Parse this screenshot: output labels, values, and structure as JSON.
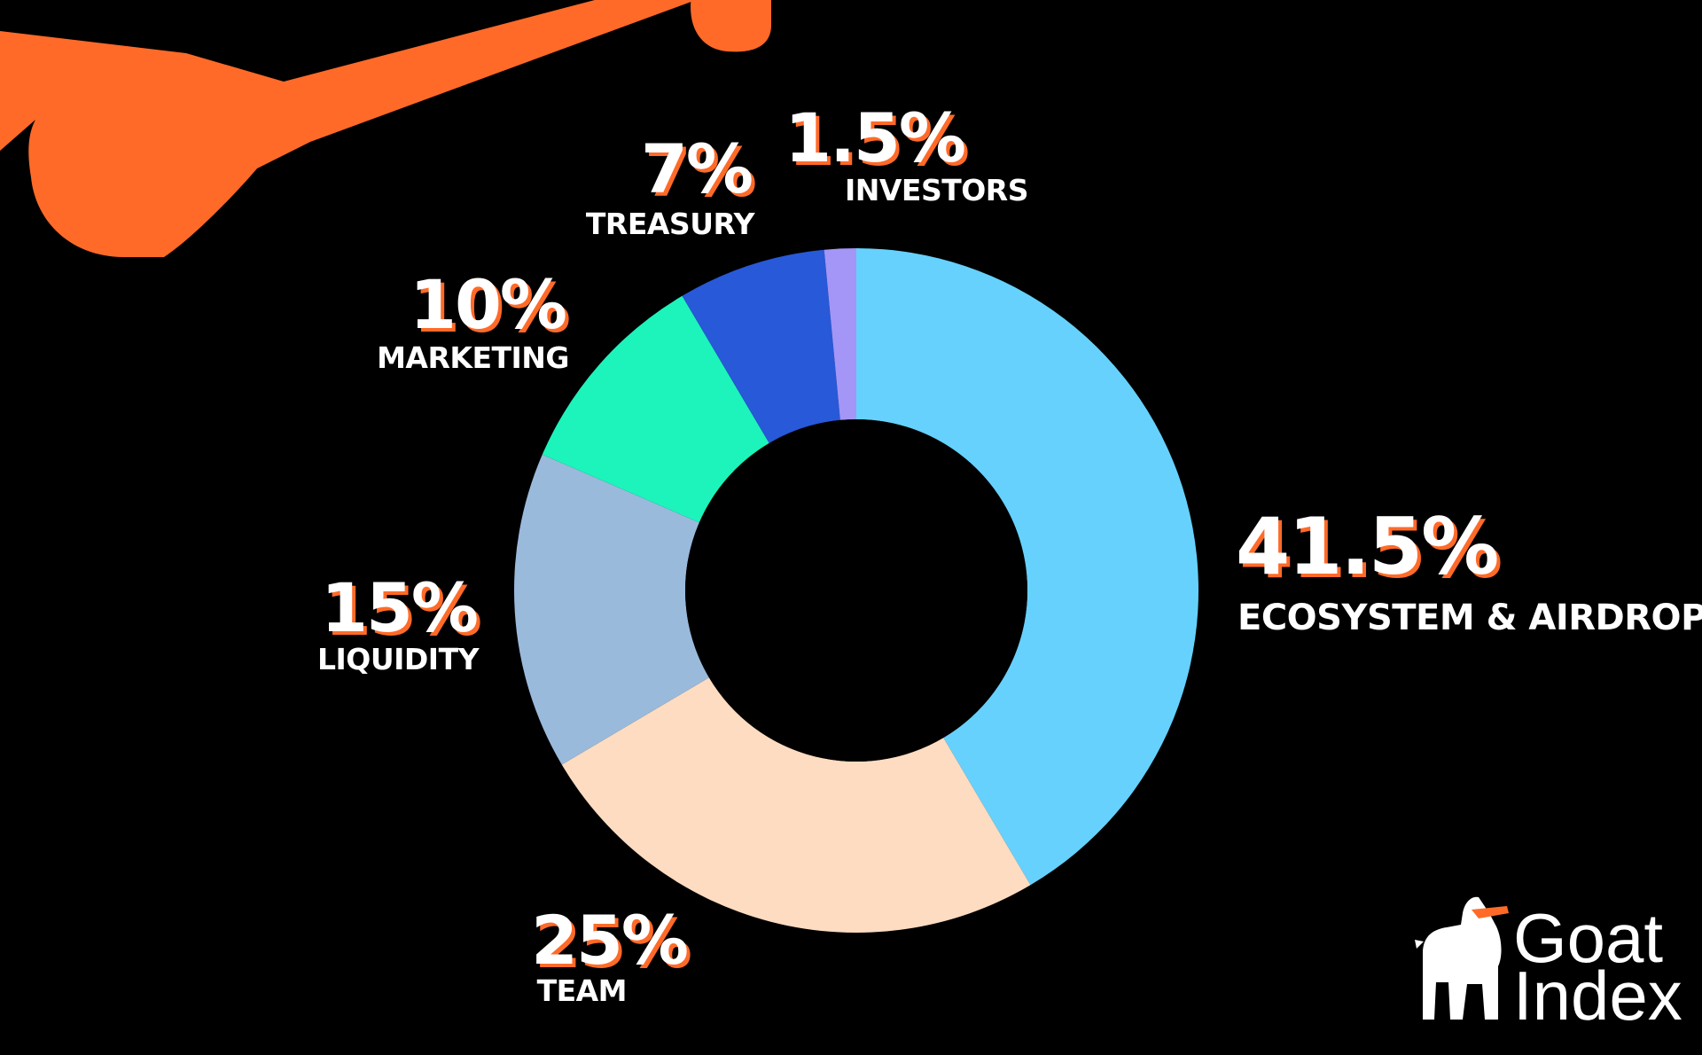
{
  "chart_data": {
    "type": "pie",
    "donut": true,
    "slices": [
      {
        "label": "ECOSYSTEM & AIRDROPS",
        "percent_label": "41.5%",
        "value": 41.5,
        "color": "#66d1fc"
      },
      {
        "label": "TEAM",
        "percent_label": "25%",
        "value": 25,
        "color": "#fddcc1"
      },
      {
        "label": "LIQUIDITY",
        "percent_label": "15%",
        "value": 15,
        "color": "#9abadc"
      },
      {
        "label": "MARKETING",
        "percent_label": "10%",
        "value": 10,
        "color": "#1cf4bb"
      },
      {
        "label": "TREASURY",
        "percent_label": "7%",
        "value": 7,
        "color": "#2759d9"
      },
      {
        "label": "INVESTORS",
        "percent_label": "1.5%",
        "value": 1.5,
        "color": "#a396f7"
      }
    ],
    "start_angle": "12 o'clock",
    "direction": "clockwise"
  },
  "brand": {
    "line1": "Goat",
    "line2": "Index"
  },
  "colors": {
    "background": "#000000",
    "accent": "#ff6a28",
    "label_text": "#ffffff"
  }
}
